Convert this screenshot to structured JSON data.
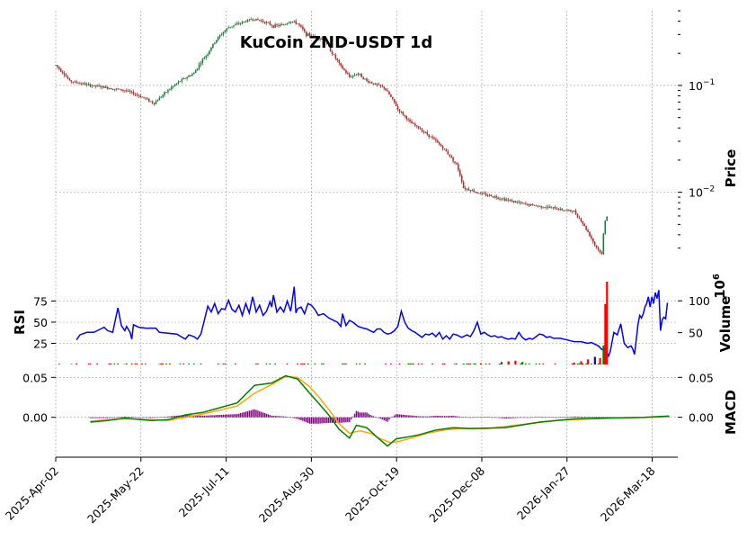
{
  "chart_data": {
    "type": "candlestick",
    "title": "KuCoin ZND-USDT 1d",
    "x_tick_labels": [
      "2025-Apr-02",
      "2025-May-22",
      "2025-Jul-11",
      "2025-Aug-30",
      "2025-Oct-19",
      "2025-Dec-08",
      "2026-Jan-27",
      "2026-Mar-18"
    ],
    "colors": {
      "up": "#1a7f3c",
      "down": "#b03030",
      "rsi": "#0000ff",
      "macd": "#008000",
      "signal": "#ffa500",
      "hist": "#800080",
      "vol_up": "#008000",
      "vol_down": "#ff0000",
      "vol_other": "#0000ff"
    },
    "price_panel": {
      "ylabel": "Price",
      "scale": "log",
      "ylim": [
        0.0018,
        0.5
      ],
      "ticks": [
        {
          "value": 0.1,
          "base": "10",
          "exp": "−1"
        },
        {
          "value": 0.01,
          "base": "10",
          "exp": "−2"
        }
      ],
      "anchors": [
        [
          0,
          0.155
        ],
        [
          8,
          0.11
        ],
        [
          20,
          0.1
        ],
        [
          30,
          0.095
        ],
        [
          40,
          0.09
        ],
        [
          50,
          0.078
        ],
        [
          57,
          0.068
        ],
        [
          65,
          0.09
        ],
        [
          72,
          0.11
        ],
        [
          80,
          0.13
        ],
        [
          88,
          0.2
        ],
        [
          94,
          0.28
        ],
        [
          100,
          0.35
        ],
        [
          106,
          0.38
        ],
        [
          114,
          0.42
        ],
        [
          120,
          0.4
        ],
        [
          126,
          0.36
        ],
        [
          132,
          0.37
        ],
        [
          136,
          0.4
        ],
        [
          140,
          0.38
        ],
        [
          145,
          0.3
        ],
        [
          155,
          0.27
        ],
        [
          160,
          0.2
        ],
        [
          165,
          0.15
        ],
        [
          170,
          0.12
        ],
        [
          175,
          0.13
        ],
        [
          180,
          0.11
        ],
        [
          190,
          0.095
        ],
        [
          198,
          0.06
        ],
        [
          205,
          0.045
        ],
        [
          215,
          0.035
        ],
        [
          225,
          0.025
        ],
        [
          232,
          0.018
        ],
        [
          236,
          0.011
        ],
        [
          240,
          0.0105
        ],
        [
          245,
          0.0098
        ],
        [
          255,
          0.009
        ],
        [
          270,
          0.0078
        ],
        [
          290,
          0.007
        ],
        [
          300,
          0.0066
        ],
        [
          307,
          0.0045
        ],
        [
          312,
          0.0032
        ],
        [
          316,
          0.0026
        ],
        [
          318,
          0.0055
        ],
        [
          319,
          0.006
        ]
      ]
    },
    "rsi_panel": {
      "ylabel": "RSI",
      "ylim": [
        0,
        100
      ],
      "ticks": [
        25,
        50,
        75
      ],
      "anchors": [
        [
          12,
          29
        ],
        [
          14,
          35
        ],
        [
          18,
          38
        ],
        [
          22,
          38
        ],
        [
          25,
          41
        ],
        [
          28,
          44
        ],
        [
          30,
          40
        ],
        [
          33,
          38
        ],
        [
          36,
          67
        ],
        [
          38,
          46
        ],
        [
          40,
          40
        ],
        [
          41,
          45
        ],
        [
          43,
          38
        ],
        [
          44,
          30
        ],
        [
          45,
          47
        ],
        [
          48,
          44
        ],
        [
          52,
          43
        ],
        [
          58,
          43
        ],
        [
          60,
          38
        ],
        [
          65,
          37
        ],
        [
          70,
          36
        ],
        [
          75,
          30
        ],
        [
          77,
          35
        ],
        [
          80,
          33
        ],
        [
          82,
          30
        ],
        [
          84,
          36
        ],
        [
          86,
          52
        ],
        [
          88,
          69
        ],
        [
          90,
          62
        ],
        [
          92,
          72
        ],
        [
          94,
          60
        ],
        [
          96,
          66
        ],
        [
          98,
          65
        ],
        [
          100,
          76
        ],
        [
          102,
          65
        ],
        [
          104,
          62
        ],
        [
          106,
          70
        ],
        [
          108,
          58
        ],
        [
          110,
          72
        ],
        [
          112,
          61
        ],
        [
          114,
          80
        ],
        [
          116,
          62
        ],
        [
          118,
          70
        ],
        [
          120,
          58
        ],
        [
          122,
          63
        ],
        [
          124,
          74
        ],
        [
          125,
          68
        ],
        [
          126,
          82
        ],
        [
          128,
          62
        ],
        [
          130,
          68
        ],
        [
          132,
          62
        ],
        [
          134,
          75
        ],
        [
          136,
          63
        ],
        [
          138,
          92
        ],
        [
          139,
          61
        ],
        [
          140,
          66
        ],
        [
          142,
          68
        ],
        [
          144,
          60
        ],
        [
          146,
          72
        ],
        [
          148,
          70
        ],
        [
          150,
          65
        ],
        [
          152,
          58
        ],
        [
          155,
          60
        ],
        [
          158,
          55
        ],
        [
          160,
          53
        ],
        [
          163,
          50
        ],
        [
          165,
          45
        ],
        [
          166,
          60
        ],
        [
          168,
          46
        ],
        [
          170,
          52
        ],
        [
          172,
          50
        ],
        [
          175,
          45
        ],
        [
          178,
          43
        ],
        [
          180,
          42
        ],
        [
          182,
          40
        ],
        [
          184,
          38
        ],
        [
          186,
          42
        ],
        [
          188,
          42
        ],
        [
          190,
          38
        ],
        [
          192,
          36
        ],
        [
          194,
          37
        ],
        [
          196,
          40
        ],
        [
          198,
          45
        ],
        [
          200,
          63
        ],
        [
          202,
          50
        ],
        [
          204,
          43
        ],
        [
          206,
          40
        ],
        [
          208,
          38
        ],
        [
          210,
          35
        ],
        [
          212,
          32
        ],
        [
          214,
          36
        ],
        [
          216,
          35
        ],
        [
          218,
          37
        ],
        [
          220,
          33
        ],
        [
          222,
          38
        ],
        [
          224,
          30
        ],
        [
          226,
          34
        ],
        [
          228,
          30
        ],
        [
          230,
          36
        ],
        [
          232,
          35
        ],
        [
          235,
          32
        ],
        [
          238,
          35
        ],
        [
          240,
          33
        ],
        [
          242,
          40
        ],
        [
          244,
          50
        ],
        [
          246,
          36
        ],
        [
          248,
          38
        ],
        [
          250,
          35
        ],
        [
          252,
          33
        ],
        [
          254,
          34
        ],
        [
          256,
          32
        ],
        [
          258,
          33
        ],
        [
          260,
          31
        ],
        [
          262,
          30
        ],
        [
          264,
          31
        ],
        [
          266,
          30
        ],
        [
          268,
          38
        ],
        [
          270,
          32
        ],
        [
          272,
          29
        ],
        [
          274,
          31
        ],
        [
          276,
          30
        ],
        [
          278,
          33
        ],
        [
          280,
          36
        ],
        [
          282,
          35
        ],
        [
          284,
          32
        ],
        [
          286,
          33
        ],
        [
          288,
          31
        ],
        [
          290,
          31
        ],
        [
          292,
          31
        ],
        [
          294,
          30
        ],
        [
          296,
          29
        ],
        [
          298,
          28
        ],
        [
          300,
          27
        ],
        [
          302,
          27
        ],
        [
          304,
          27
        ],
        [
          306,
          26
        ],
        [
          308,
          25
        ],
        [
          310,
          26
        ],
        [
          312,
          24
        ],
        [
          314,
          22
        ],
        [
          316,
          18
        ],
        [
          318,
          16
        ],
        [
          319,
          14
        ],
        [
          320,
          10
        ],
        [
          321,
          16
        ],
        [
          323,
          38
        ],
        [
          325,
          35
        ],
        [
          327,
          48
        ],
        [
          329,
          25
        ],
        [
          331,
          20
        ],
        [
          333,
          22
        ],
        [
          334,
          18
        ],
        [
          335,
          12
        ],
        [
          336,
          30
        ],
        [
          337,
          48
        ],
        [
          338,
          58
        ],
        [
          339,
          55
        ],
        [
          340,
          60
        ],
        [
          341,
          68
        ],
        [
          342,
          72
        ],
        [
          343,
          80
        ],
        [
          344,
          68
        ],
        [
          345,
          80
        ],
        [
          346,
          72
        ],
        [
          347,
          85
        ],
        [
          348,
          78
        ],
        [
          349,
          88
        ],
        [
          350,
          40
        ],
        [
          351,
          53
        ],
        [
          352,
          56
        ],
        [
          353,
          54
        ],
        [
          354,
          73
        ]
      ]
    },
    "volume_panel": {
      "ylabel": "Volume",
      "multiplier_base": "10",
      "multiplier_exp": "6",
      "ylim": [
        0,
        130
      ],
      "ticks": [
        50,
        100
      ],
      "bars": [
        [
          2,
          1,
          "up"
        ],
        [
          9,
          0.8,
          "up"
        ],
        [
          12,
          1,
          "down"
        ],
        [
          40,
          0.6,
          "down"
        ],
        [
          60,
          0.8,
          "up"
        ],
        [
          62,
          0.8,
          "down"
        ],
        [
          231,
          1,
          "down"
        ],
        [
          236,
          1.2,
          "up"
        ],
        [
          246,
          2,
          "down"
        ],
        [
          258,
          4,
          "up"
        ],
        [
          262,
          5,
          "down"
        ],
        [
          266,
          6,
          "down"
        ],
        [
          270,
          4,
          "up"
        ],
        [
          300,
          3,
          "down"
        ],
        [
          304,
          5,
          "down"
        ],
        [
          308,
          8,
          "down"
        ],
        [
          312,
          12,
          "other"
        ],
        [
          315,
          10,
          "down"
        ],
        [
          317,
          30,
          "up"
        ],
        [
          318,
          95,
          "down"
        ],
        [
          319,
          130,
          "down"
        ]
      ]
    },
    "macd_panel": {
      "ylabel": "MACD",
      "ylim": [
        -0.05,
        0.065
      ],
      "ticks": [
        {
          "value": 0,
          "label": "0.00"
        },
        {
          "value": 0.05,
          "label": "0.05"
        }
      ],
      "macd_anchors": [
        [
          20,
          -0.006
        ],
        [
          30,
          -0.004
        ],
        [
          40,
          -0.001
        ],
        [
          55,
          -0.004
        ],
        [
          65,
          -0.003
        ],
        [
          75,
          0.003
        ],
        [
          85,
          0.006
        ],
        [
          95,
          0.012
        ],
        [
          105,
          0.018
        ],
        [
          115,
          0.04
        ],
        [
          125,
          0.043
        ],
        [
          133,
          0.052
        ],
        [
          140,
          0.048
        ],
        [
          147,
          0.03
        ],
        [
          152,
          0.018
        ],
        [
          158,
          0.003
        ],
        [
          164,
          -0.015
        ],
        [
          170,
          -0.026
        ],
        [
          174,
          -0.01
        ],
        [
          180,
          -0.013
        ],
        [
          186,
          -0.025
        ],
        [
          192,
          -0.036
        ],
        [
          197,
          -0.027
        ],
        [
          203,
          -0.025
        ],
        [
          210,
          -0.022
        ],
        [
          220,
          -0.016
        ],
        [
          230,
          -0.013
        ],
        [
          240,
          -0.014
        ],
        [
          260,
          -0.013
        ],
        [
          280,
          -0.006
        ],
        [
          300,
          -0.002
        ],
        [
          320,
          -0.001
        ],
        [
          340,
          0
        ],
        [
          355,
          0.0015
        ]
      ],
      "signal_anchors": [
        [
          20,
          -0.005
        ],
        [
          30,
          -0.003
        ],
        [
          40,
          -0.002
        ],
        [
          55,
          -0.003
        ],
        [
          65,
          -0.004
        ],
        [
          75,
          0.0
        ],
        [
          85,
          0.004
        ],
        [
          95,
          0.009
        ],
        [
          105,
          0.014
        ],
        [
          115,
          0.03
        ],
        [
          125,
          0.041
        ],
        [
          133,
          0.051
        ],
        [
          140,
          0.05
        ],
        [
          147,
          0.038
        ],
        [
          152,
          0.026
        ],
        [
          158,
          0.01
        ],
        [
          164,
          -0.008
        ],
        [
          170,
          -0.02
        ],
        [
          176,
          -0.017
        ],
        [
          182,
          -0.02
        ],
        [
          188,
          -0.027
        ],
        [
          194,
          -0.032
        ],
        [
          199,
          -0.03
        ],
        [
          206,
          -0.026
        ],
        [
          215,
          -0.02
        ],
        [
          225,
          -0.016
        ],
        [
          235,
          -0.014
        ],
        [
          250,
          -0.014
        ],
        [
          270,
          -0.009
        ],
        [
          290,
          -0.004
        ],
        [
          310,
          -0.002
        ],
        [
          330,
          -0.0005
        ],
        [
          355,
          0.0005
        ]
      ]
    }
  }
}
